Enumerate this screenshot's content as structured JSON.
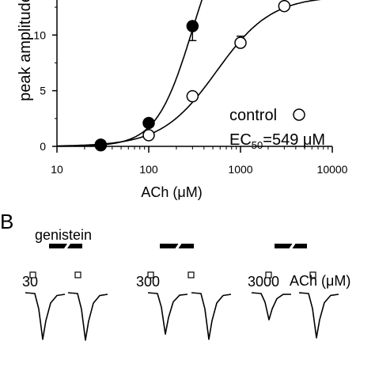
{
  "panel_b_label": "B",
  "chart_data": {
    "type": "scatter",
    "x_scale": "log",
    "xlabel": "ACh (μM)",
    "ylabel": "peak amplitude",
    "xlim": [
      10,
      10000
    ],
    "ylim": [
      0,
      14
    ],
    "xticks": [
      10,
      100,
      1000,
      10000
    ],
    "yticks": [
      0,
      5,
      10
    ],
    "grid": false,
    "legend": {
      "label": "control",
      "marker": "open-circle",
      "position": "bottom-right"
    },
    "annotation": {
      "prefix": "EC",
      "subscript": "50",
      "value": "=549 μM"
    },
    "series": [
      {
        "name": "control",
        "marker": "open-circle",
        "x": [
          30,
          100,
          300,
          1000,
          3000
        ],
        "y": [
          0.1,
          1.0,
          4.5,
          9.3,
          12.6
        ],
        "yerr": [
          0,
          0,
          0,
          0.6,
          1.2
        ]
      },
      {
        "marker": "filled-circle",
        "x": [
          30,
          100,
          300
        ],
        "y": [
          0.15,
          2.1,
          10.8
        ],
        "yerr": [
          0,
          0,
          1.3
        ]
      }
    ]
  },
  "traces": {
    "drug_label": "genistein",
    "unit_label": "ACh (μM)",
    "groups": [
      {
        "concentration": "30",
        "control_peak": 0.62,
        "genistein_peak": 0.63
      },
      {
        "concentration": "300",
        "control_peak": 0.55,
        "genistein_peak": 0.62
      },
      {
        "concentration": "3000",
        "control_peak": 0.36,
        "genistein_peak": 0.6
      }
    ]
  }
}
